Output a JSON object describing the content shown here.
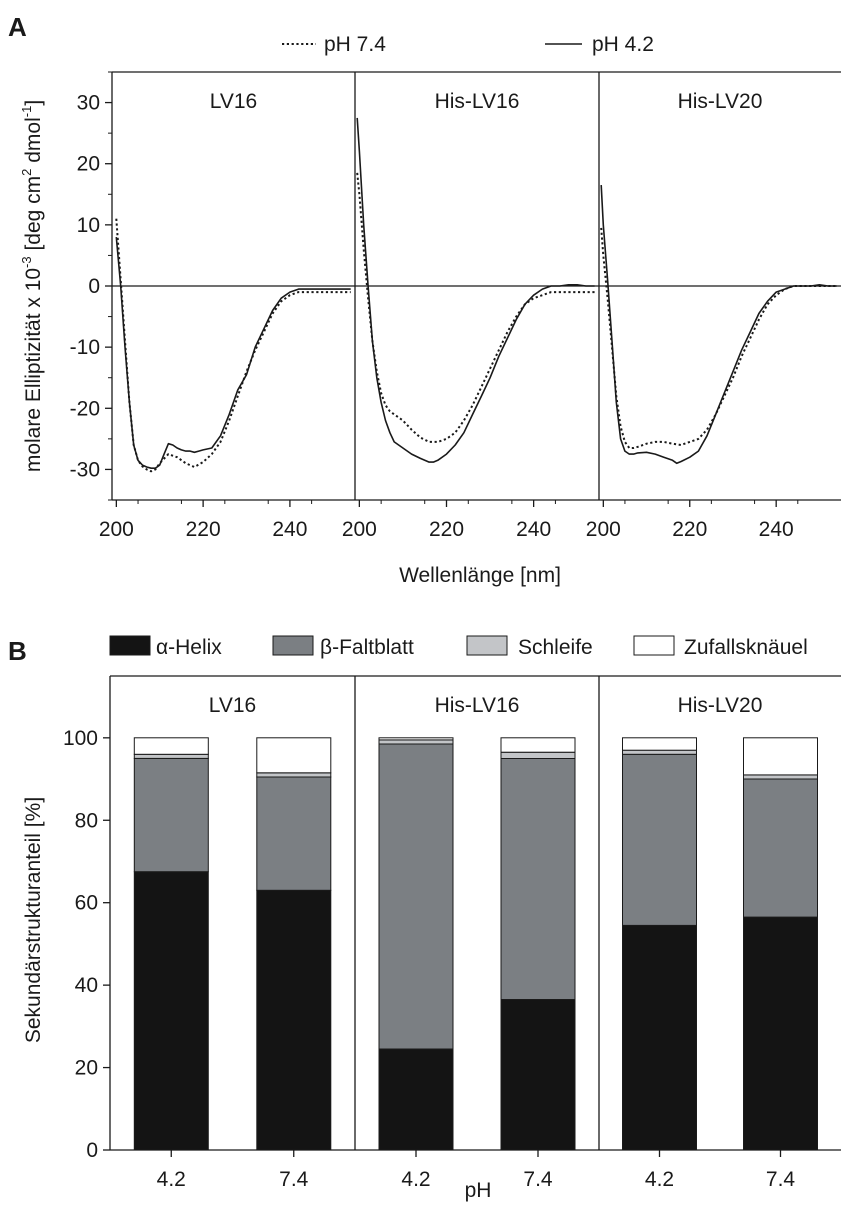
{
  "colors": {
    "helix": "#141414",
    "sheet": "#7b7f83",
    "loop": "#c3c5c8",
    "coil": "#ffffff",
    "line": "#1a1a1a"
  },
  "chart_data": [
    {
      "panel": "A",
      "type": "line",
      "ylabel": "molare Elliptizität x 10-3 [deg cm2 dmol-1]",
      "ylabel_parts": [
        "molare Elliptizität x 10",
        "-3",
        " [deg cm",
        "2",
        " dmol",
        "-1",
        "]"
      ],
      "xlabel": "Wellenlänge [nm]",
      "ylim": [
        -35,
        35
      ],
      "yticks": [
        30,
        20,
        10,
        0,
        -10,
        -20,
        -30
      ],
      "xticks": [
        200,
        220,
        240
      ],
      "legend": [
        {
          "label": "pH 7.4",
          "style": "dotted"
        },
        {
          "label": "pH 4.2",
          "style": "solid"
        }
      ],
      "subplots": [
        {
          "title": "LV16",
          "xlim": [
            199,
            255
          ],
          "series": [
            {
              "name": "pH 4.2",
              "style": "solid",
              "x": [
                200,
                201,
                202,
                203,
                204,
                205,
                206,
                207,
                208,
                209,
                210,
                211,
                212,
                213,
                214,
                215,
                216,
                217,
                218,
                219,
                220,
                222,
                224,
                226,
                228,
                230,
                232,
                234,
                236,
                238,
                240,
                242,
                244,
                246,
                248,
                250,
                252,
                254
              ],
              "y": [
                8,
                0,
                -10,
                -19,
                -26,
                -28.5,
                -29.3,
                -29.6,
                -29.8,
                -29.8,
                -29.3,
                -27.5,
                -25.8,
                -26,
                -26.5,
                -26.8,
                -27,
                -27,
                -27.2,
                -27,
                -26.8,
                -26.5,
                -24.5,
                -21,
                -17,
                -14.5,
                -10,
                -7,
                -4,
                -2,
                -1,
                -0.5,
                -0.5,
                -0.5,
                -0.5,
                -0.5,
                -0.5,
                -0.5
              ]
            },
            {
              "name": "pH 7.4",
              "style": "dotted",
              "x": [
                200,
                201,
                202,
                203,
                204,
                205,
                206,
                207,
                208,
                209,
                210,
                212,
                214,
                216,
                218,
                220,
                222,
                224,
                226,
                228,
                230,
                232,
                234,
                236,
                238,
                240,
                242,
                244,
                246,
                248,
                250,
                252,
                254
              ],
              "y": [
                11,
                1,
                -9,
                -19,
                -26,
                -28.5,
                -29.5,
                -30,
                -30.3,
                -30,
                -29,
                -27.5,
                -28,
                -29,
                -29.6,
                -28.8,
                -27.5,
                -25.5,
                -22,
                -18,
                -14,
                -10.5,
                -7.5,
                -4.5,
                -2.5,
                -1.5,
                -1,
                -1,
                -1,
                -1,
                -1,
                -1,
                -1
              ]
            }
          ]
        },
        {
          "title": "His-LV16",
          "xlim": [
            199,
            255
          ],
          "series": [
            {
              "name": "pH 4.2",
              "style": "solid",
              "x": [
                199.5,
                200,
                201,
                202,
                203,
                204,
                205,
                206,
                207,
                208,
                210,
                212,
                214,
                216,
                217,
                218,
                220,
                222,
                224,
                226,
                228,
                230,
                232,
                234,
                236,
                238,
                240,
                242,
                244,
                246,
                248,
                250,
                252,
                254
              ],
              "y": [
                27.5,
                22,
                10,
                0,
                -9,
                -15,
                -19,
                -22,
                -24,
                -25.5,
                -26.5,
                -27.5,
                -28.2,
                -28.8,
                -28.8,
                -28.5,
                -27.5,
                -26,
                -24,
                -21,
                -18,
                -15,
                -11.5,
                -8.5,
                -5.5,
                -3,
                -1.5,
                -0.5,
                0,
                0,
                0.2,
                0.2,
                0,
                0
              ]
            },
            {
              "name": "pH 7.4",
              "style": "dotted",
              "x": [
                199.5,
                200,
                201,
                202,
                203,
                204,
                205,
                206,
                207,
                208,
                210,
                212,
                214,
                216,
                218,
                220,
                222,
                224,
                226,
                228,
                230,
                232,
                234,
                236,
                238,
                240,
                242,
                244,
                246,
                248,
                250,
                252,
                254
              ],
              "y": [
                18.5,
                15,
                6,
                -2,
                -9,
                -14,
                -17.5,
                -19.5,
                -20.5,
                -21,
                -22,
                -23.5,
                -24.8,
                -25.5,
                -25.5,
                -25,
                -24,
                -22,
                -19.5,
                -16.5,
                -13.5,
                -10.5,
                -7.5,
                -5,
                -3,
                -2,
                -1.5,
                -1,
                -1,
                -1,
                -1,
                -1,
                -1
              ]
            }
          ]
        },
        {
          "title": "His-LV20",
          "xlim": [
            199,
            255
          ],
          "series": [
            {
              "name": "pH 4.2",
              "style": "solid",
              "x": [
                199.5,
                200,
                201,
                202,
                203,
                204,
                205,
                206,
                207,
                208,
                210,
                212,
                214,
                216,
                217,
                218,
                220,
                222,
                224,
                226,
                228,
                230,
                232,
                234,
                236,
                238,
                240,
                242,
                244,
                246,
                248,
                250,
                252,
                254
              ],
              "y": [
                16.5,
                10,
                1,
                -9,
                -19,
                -25,
                -27,
                -27.5,
                -27.5,
                -27.3,
                -27.2,
                -27.5,
                -28,
                -28.5,
                -29,
                -28.7,
                -28,
                -27,
                -24.5,
                -21,
                -17.5,
                -14,
                -10.5,
                -7.5,
                -4.5,
                -2.5,
                -1,
                -0.5,
                0,
                0,
                0,
                0.2,
                0,
                0
              ]
            },
            {
              "name": "pH 7.4",
              "style": "dotted",
              "x": [
                199.5,
                200,
                201,
                202,
                203,
                204,
                205,
                206,
                207,
                208,
                210,
                212,
                214,
                216,
                218,
                220,
                222,
                224,
                226,
                228,
                230,
                232,
                234,
                236,
                238,
                240,
                242,
                244,
                246,
                248,
                250,
                252,
                254
              ],
              "y": [
                9.5,
                5,
                -2,
                -10,
                -18,
                -23,
                -25.5,
                -26.5,
                -26.5,
                -26.3,
                -25.8,
                -25.5,
                -25.5,
                -25.8,
                -26,
                -25.5,
                -25,
                -23.5,
                -21,
                -18,
                -15,
                -11.5,
                -8.5,
                -5.5,
                -3,
                -1.5,
                -0.5,
                0,
                0,
                0,
                0,
                0,
                0
              ]
            }
          ]
        }
      ]
    },
    {
      "panel": "B",
      "type": "bar",
      "stacked": true,
      "ylabel": "Sekundärstrukturanteil [%]",
      "xlabel": "pH",
      "ylim": [
        0,
        115
      ],
      "yticks": [
        0,
        20,
        40,
        60,
        80,
        100
      ],
      "legend": [
        "α-Helix",
        "β-Faltblatt",
        "Schleife",
        "Zufallsknäuel"
      ],
      "subplots": [
        {
          "title": "LV16",
          "categories": [
            "4.2",
            "7.4"
          ],
          "series": [
            {
              "name": "α-Helix",
              "values": [
                67.5,
                63
              ]
            },
            {
              "name": "β-Faltblatt",
              "values": [
                27.5,
                27.5
              ]
            },
            {
              "name": "Schleife",
              "values": [
                1,
                1
              ]
            },
            {
              "name": "Zufallsknäuel",
              "values": [
                4,
                8.5
              ]
            }
          ]
        },
        {
          "title": "His-LV16",
          "categories": [
            "4.2",
            "7.4"
          ],
          "series": [
            {
              "name": "α-Helix",
              "values": [
                24.5,
                36.5
              ]
            },
            {
              "name": "β-Faltblatt",
              "values": [
                74,
                58.5
              ]
            },
            {
              "name": "Schleife",
              "values": [
                1,
                1.5
              ]
            },
            {
              "name": "Zufallsknäuel",
              "values": [
                0.5,
                3.5
              ]
            }
          ]
        },
        {
          "title": "His-LV20",
          "categories": [
            "4.2",
            "7.4"
          ],
          "series": [
            {
              "name": "α-Helix",
              "values": [
                54.5,
                56.5
              ]
            },
            {
              "name": "β-Faltblatt",
              "values": [
                41.5,
                33.5
              ]
            },
            {
              "name": "Schleife",
              "values": [
                1,
                1
              ]
            },
            {
              "name": "Zufallsknäuel",
              "values": [
                3,
                9
              ]
            }
          ]
        }
      ]
    }
  ]
}
